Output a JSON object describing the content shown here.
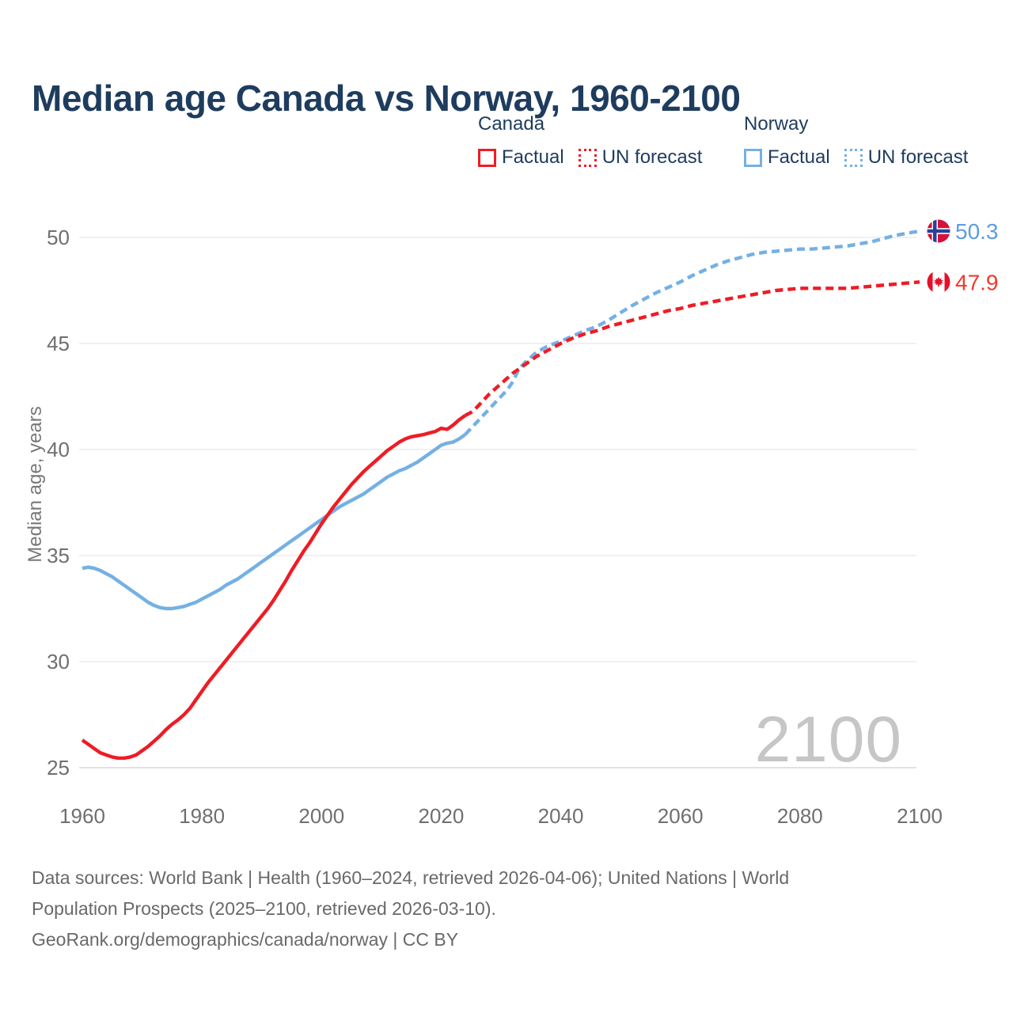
{
  "header": {
    "title": "Median age Canada vs Norway, 1960-2100"
  },
  "legend": {
    "groups": [
      {
        "label": "Canada",
        "items": [
          {
            "label": "Factual",
            "style": "solid",
            "color": "#ee1c25"
          },
          {
            "label": "UN forecast",
            "style": "dotted",
            "color": "#ee1c25"
          }
        ]
      },
      {
        "label": "Norway",
        "items": [
          {
            "label": "Factual",
            "style": "solid",
            "color": "#74b0e4"
          },
          {
            "label": "UN forecast",
            "style": "dotted",
            "color": "#74b0e4"
          }
        ]
      }
    ]
  },
  "chart_data": {
    "type": "line",
    "title": "Median age Canada vs Norway, 1960-2100",
    "xlabel": "",
    "ylabel": "Median age, years",
    "x_ticks": [
      1960,
      1980,
      2000,
      2020,
      2040,
      2060,
      2080,
      2100
    ],
    "y_ticks": [
      25,
      30,
      35,
      40,
      45,
      50
    ],
    "xlim": [
      1960,
      2100
    ],
    "ylim": [
      25,
      50.5
    ],
    "grid": true,
    "legend_position": "top-right",
    "watermark": "2100",
    "colors": {
      "canada": "#ee1c25",
      "norway": "#74b0e4"
    },
    "flag_colors": {
      "norway": {
        "base": "#d4123a",
        "cross_outline": "#ffffff",
        "cross": "#27419a"
      },
      "canada": {
        "band": "#e4112b",
        "leaf": "#e4112b",
        "bg": "#ffffff"
      }
    },
    "series": [
      {
        "name": "Canada Factual",
        "country": "Canada",
        "phase": "factual",
        "color": "#ee1c25",
        "dash": false,
        "points": [
          [
            1960,
            26.3
          ],
          [
            1961,
            26.1
          ],
          [
            1962,
            25.9
          ],
          [
            1963,
            25.7
          ],
          [
            1964,
            25.6
          ],
          [
            1965,
            25.5
          ],
          [
            1966,
            25.45
          ],
          [
            1967,
            25.45
          ],
          [
            1968,
            25.5
          ],
          [
            1969,
            25.6
          ],
          [
            1970,
            25.8
          ],
          [
            1971,
            26.0
          ],
          [
            1972,
            26.25
          ],
          [
            1973,
            26.5
          ],
          [
            1974,
            26.8
          ],
          [
            1975,
            27.05
          ],
          [
            1976,
            27.25
          ],
          [
            1977,
            27.5
          ],
          [
            1978,
            27.8
          ],
          [
            1979,
            28.2
          ],
          [
            1980,
            28.6
          ],
          [
            1981,
            29.0
          ],
          [
            1982,
            29.35
          ],
          [
            1983,
            29.7
          ],
          [
            1984,
            30.05
          ],
          [
            1985,
            30.4
          ],
          [
            1986,
            30.75
          ],
          [
            1987,
            31.1
          ],
          [
            1988,
            31.45
          ],
          [
            1989,
            31.8
          ],
          [
            1990,
            32.15
          ],
          [
            1991,
            32.5
          ],
          [
            1992,
            32.9
          ],
          [
            1993,
            33.35
          ],
          [
            1994,
            33.8
          ],
          [
            1995,
            34.3
          ],
          [
            1996,
            34.75
          ],
          [
            1997,
            35.2
          ],
          [
            1998,
            35.6
          ],
          [
            1999,
            36.05
          ],
          [
            2000,
            36.5
          ],
          [
            2001,
            36.9
          ],
          [
            2002,
            37.3
          ],
          [
            2003,
            37.65
          ],
          [
            2004,
            38.0
          ],
          [
            2005,
            38.35
          ],
          [
            2006,
            38.65
          ],
          [
            2007,
            38.95
          ],
          [
            2008,
            39.2
          ],
          [
            2009,
            39.45
          ],
          [
            2010,
            39.7
          ],
          [
            2011,
            39.95
          ],
          [
            2012,
            40.15
          ],
          [
            2013,
            40.35
          ],
          [
            2014,
            40.5
          ],
          [
            2015,
            40.6
          ],
          [
            2016,
            40.65
          ],
          [
            2017,
            40.7
          ],
          [
            2018,
            40.78
          ],
          [
            2019,
            40.85
          ],
          [
            2020,
            41.0
          ],
          [
            2021,
            40.95
          ],
          [
            2022,
            41.15
          ],
          [
            2023,
            41.4
          ],
          [
            2024,
            41.6
          ]
        ]
      },
      {
        "name": "Canada UN forecast",
        "country": "Canada",
        "phase": "forecast",
        "color": "#ee1c25",
        "dash": true,
        "points": [
          [
            2024,
            41.6
          ],
          [
            2025,
            41.75
          ],
          [
            2026,
            42.0
          ],
          [
            2027,
            42.3
          ],
          [
            2028,
            42.6
          ],
          [
            2029,
            42.85
          ],
          [
            2030,
            43.1
          ],
          [
            2031,
            43.35
          ],
          [
            2032,
            43.6
          ],
          [
            2033,
            43.8
          ],
          [
            2034,
            44.0
          ],
          [
            2035,
            44.2
          ],
          [
            2036,
            44.4
          ],
          [
            2037,
            44.55
          ],
          [
            2038,
            44.7
          ],
          [
            2039,
            44.85
          ],
          [
            2040,
            45.0
          ],
          [
            2042,
            45.25
          ],
          [
            2044,
            45.45
          ],
          [
            2046,
            45.6
          ],
          [
            2048,
            45.8
          ],
          [
            2050,
            45.95
          ],
          [
            2052,
            46.1
          ],
          [
            2054,
            46.25
          ],
          [
            2056,
            46.4
          ],
          [
            2058,
            46.55
          ],
          [
            2060,
            46.65
          ],
          [
            2062,
            46.8
          ],
          [
            2064,
            46.9
          ],
          [
            2066,
            47.0
          ],
          [
            2068,
            47.1
          ],
          [
            2070,
            47.2
          ],
          [
            2072,
            47.3
          ],
          [
            2074,
            47.4
          ],
          [
            2076,
            47.5
          ],
          [
            2078,
            47.55
          ],
          [
            2080,
            47.6
          ],
          [
            2084,
            47.6
          ],
          [
            2088,
            47.6
          ],
          [
            2090,
            47.65
          ],
          [
            2092,
            47.7
          ],
          [
            2094,
            47.75
          ],
          [
            2096,
            47.8
          ],
          [
            2098,
            47.85
          ],
          [
            2100,
            47.9
          ]
        ]
      },
      {
        "name": "Norway Factual",
        "country": "Norway",
        "phase": "factual",
        "color": "#74b0e4",
        "dash": false,
        "points": [
          [
            1960,
            34.4
          ],
          [
            1961,
            34.45
          ],
          [
            1962,
            34.4
          ],
          [
            1963,
            34.3
          ],
          [
            1964,
            34.15
          ],
          [
            1965,
            34.0
          ],
          [
            1966,
            33.8
          ],
          [
            1967,
            33.6
          ],
          [
            1968,
            33.4
          ],
          [
            1969,
            33.2
          ],
          [
            1970,
            33.0
          ],
          [
            1971,
            32.8
          ],
          [
            1972,
            32.65
          ],
          [
            1973,
            32.55
          ],
          [
            1974,
            32.5
          ],
          [
            1975,
            32.5
          ],
          [
            1976,
            32.55
          ],
          [
            1977,
            32.6
          ],
          [
            1978,
            32.7
          ],
          [
            1979,
            32.8
          ],
          [
            1980,
            32.95
          ],
          [
            1981,
            33.1
          ],
          [
            1982,
            33.25
          ],
          [
            1983,
            33.4
          ],
          [
            1984,
            33.6
          ],
          [
            1985,
            33.75
          ],
          [
            1986,
            33.9
          ],
          [
            1987,
            34.1
          ],
          [
            1988,
            34.3
          ],
          [
            1989,
            34.5
          ],
          [
            1990,
            34.7
          ],
          [
            1991,
            34.9
          ],
          [
            1992,
            35.1
          ],
          [
            1993,
            35.3
          ],
          [
            1994,
            35.5
          ],
          [
            1995,
            35.7
          ],
          [
            1996,
            35.9
          ],
          [
            1997,
            36.1
          ],
          [
            1998,
            36.3
          ],
          [
            1999,
            36.5
          ],
          [
            2000,
            36.7
          ],
          [
            2001,
            36.9
          ],
          [
            2002,
            37.1
          ],
          [
            2003,
            37.3
          ],
          [
            2004,
            37.45
          ],
          [
            2005,
            37.6
          ],
          [
            2006,
            37.75
          ],
          [
            2007,
            37.9
          ],
          [
            2008,
            38.1
          ],
          [
            2009,
            38.3
          ],
          [
            2010,
            38.5
          ],
          [
            2011,
            38.7
          ],
          [
            2012,
            38.85
          ],
          [
            2013,
            39.0
          ],
          [
            2014,
            39.1
          ],
          [
            2015,
            39.25
          ],
          [
            2016,
            39.4
          ],
          [
            2017,
            39.6
          ],
          [
            2018,
            39.8
          ],
          [
            2019,
            40.0
          ],
          [
            2020,
            40.2
          ],
          [
            2021,
            40.3
          ],
          [
            2022,
            40.35
          ],
          [
            2023,
            40.5
          ],
          [
            2024,
            40.7
          ]
        ]
      },
      {
        "name": "Norway UN forecast",
        "country": "Norway",
        "phase": "forecast",
        "color": "#74b0e4",
        "dash": true,
        "points": [
          [
            2024,
            40.7
          ],
          [
            2025,
            41.0
          ],
          [
            2026,
            41.3
          ],
          [
            2027,
            41.6
          ],
          [
            2028,
            41.9
          ],
          [
            2029,
            42.2
          ],
          [
            2030,
            42.5
          ],
          [
            2031,
            42.8
          ],
          [
            2032,
            43.2
          ],
          [
            2033,
            43.8
          ],
          [
            2034,
            44.1
          ],
          [
            2035,
            44.35
          ],
          [
            2036,
            44.6
          ],
          [
            2037,
            44.75
          ],
          [
            2038,
            44.9
          ],
          [
            2039,
            45.0
          ],
          [
            2040,
            45.1
          ],
          [
            2042,
            45.35
          ],
          [
            2044,
            45.6
          ],
          [
            2046,
            45.8
          ],
          [
            2048,
            46.1
          ],
          [
            2050,
            46.45
          ],
          [
            2052,
            46.8
          ],
          [
            2054,
            47.1
          ],
          [
            2056,
            47.4
          ],
          [
            2058,
            47.65
          ],
          [
            2060,
            47.9
          ],
          [
            2062,
            48.2
          ],
          [
            2064,
            48.45
          ],
          [
            2066,
            48.7
          ],
          [
            2068,
            48.9
          ],
          [
            2070,
            49.05
          ],
          [
            2072,
            49.2
          ],
          [
            2074,
            49.3
          ],
          [
            2076,
            49.35
          ],
          [
            2078,
            49.4
          ],
          [
            2080,
            49.45
          ],
          [
            2082,
            49.45
          ],
          [
            2084,
            49.5
          ],
          [
            2086,
            49.55
          ],
          [
            2088,
            49.6
          ],
          [
            2090,
            49.7
          ],
          [
            2092,
            49.8
          ],
          [
            2094,
            49.95
          ],
          [
            2096,
            50.1
          ],
          [
            2098,
            50.2
          ],
          [
            2100,
            50.3
          ]
        ]
      }
    ],
    "end_labels": [
      {
        "series_index": 3,
        "text": "50.3",
        "color": "#5d9ddf",
        "flag": "norway"
      },
      {
        "series_index": 1,
        "text": "47.9",
        "color": "#f0392b",
        "flag": "canada"
      }
    ]
  },
  "footer": {
    "lines": [
      "Data sources: World Bank | Health (1960–2024, retrieved 2026-04-06); United Nations | World",
      "Population Prospects (2025–2100, retrieved 2026-03-10).",
      "GeoRank.org/demographics/canada/norway | CC BY"
    ]
  }
}
